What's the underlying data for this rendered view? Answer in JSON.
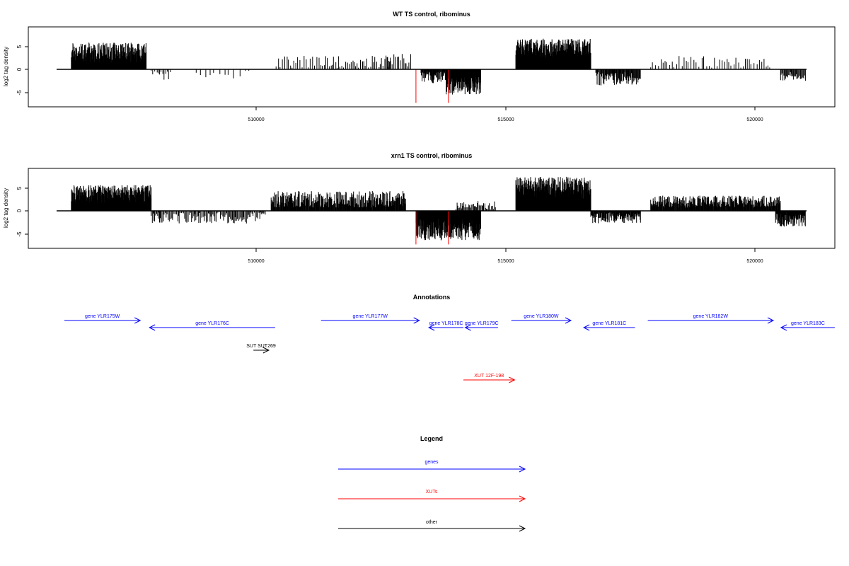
{
  "colors": {
    "axis": "#000000",
    "genes": "#0000ff",
    "xuts": "#ff0000",
    "other": "#000000",
    "highlight": "#ff0000"
  },
  "panels": [
    {
      "title": "WT TS control, ribominus",
      "ylabel": "log2 tag density",
      "yticks": [
        {
          "value": -5,
          "label": "-5"
        },
        {
          "value": 0,
          "label": "0"
        },
        {
          "value": 5,
          "label": "5"
        }
      ],
      "xticks": [
        {
          "value": 510000,
          "label": "510000"
        },
        {
          "value": 515000,
          "label": "515000"
        },
        {
          "value": 520000,
          "label": "520000"
        }
      ]
    },
    {
      "title": "xrn1 TS control, ribominus",
      "ylabel": "log2 tag density",
      "yticks": [
        {
          "value": -5,
          "label": "-5"
        },
        {
          "value": 0,
          "label": "0"
        },
        {
          "value": 5,
          "label": "5"
        }
      ],
      "xticks": [
        {
          "value": 510000,
          "label": "510000"
        },
        {
          "value": 515000,
          "label": "515000"
        },
        {
          "value": 520000,
          "label": "520000"
        }
      ]
    }
  ],
  "chart_data": [
    {
      "type": "bar",
      "title": "WT TS control, ribominus",
      "ylabel": "log2 tag density",
      "xlim": [
        505250,
        521550
      ],
      "ylim": [
        -7.5,
        9
      ],
      "baseline_range": [
        506250,
        521000
      ],
      "regions": [
        {
          "start": 506300,
          "end": 507800,
          "level": 3.6,
          "spread": 2.2,
          "density": 3
        },
        {
          "start": 507900,
          "end": 508300,
          "level": -1.0,
          "spread": 1.5,
          "density": 0.4
        },
        {
          "start": 508800,
          "end": 509900,
          "level": -1.0,
          "spread": 1.2,
          "density": 0.15
        },
        {
          "start": 510400,
          "end": 512700,
          "level": 1.5,
          "spread": 1.5,
          "density": 0.4
        },
        {
          "start": 512600,
          "end": 513100,
          "level": 2.0,
          "spread": 1.5,
          "density": 0.5
        },
        {
          "start": 513300,
          "end": 514200,
          "level": -1.5,
          "spread": 1.5,
          "density": 1.5
        },
        {
          "start": 513800,
          "end": 514500,
          "level": -3.5,
          "spread": 2.0,
          "density": 2.5
        },
        {
          "start": 515200,
          "end": 516700,
          "level": 4.5,
          "spread": 2.2,
          "density": 3
        },
        {
          "start": 516800,
          "end": 517700,
          "level": -2.0,
          "spread": 1.5,
          "density": 1.2
        },
        {
          "start": 517900,
          "end": 520300,
          "level": 1.5,
          "spread": 1.4,
          "density": 0.3
        },
        {
          "start": 520500,
          "end": 521000,
          "level": -1.5,
          "spread": 1.0,
          "density": 1.0
        }
      ],
      "highlights": [
        {
          "x": 513200,
          "y": -7.3
        },
        {
          "x": 513850,
          "y": -7.3
        }
      ]
    },
    {
      "type": "bar",
      "title": "xrn1 TS control, ribominus",
      "ylabel": "log2 tag density",
      "xlim": [
        505250,
        521550
      ],
      "ylim": [
        -7.5,
        9
      ],
      "baseline_range": [
        506250,
        521000
      ],
      "regions": [
        {
          "start": 506300,
          "end": 507900,
          "level": 3.6,
          "spread": 2.0,
          "density": 3
        },
        {
          "start": 507900,
          "end": 510200,
          "level": -1.5,
          "spread": 1.3,
          "density": 0.7
        },
        {
          "start": 510300,
          "end": 513000,
          "level": 2.5,
          "spread": 1.8,
          "density": 1.6
        },
        {
          "start": 513200,
          "end": 514500,
          "level": -4.0,
          "spread": 2.4,
          "density": 3
        },
        {
          "start": 514000,
          "end": 514800,
          "level": 1.2,
          "spread": 1.0,
          "density": 0.8
        },
        {
          "start": 515200,
          "end": 516700,
          "level": 5.0,
          "spread": 2.4,
          "density": 3
        },
        {
          "start": 516700,
          "end": 517700,
          "level": -1.5,
          "spread": 1.2,
          "density": 1.5
        },
        {
          "start": 517900,
          "end": 520500,
          "level": 2.0,
          "spread": 1.3,
          "density": 1.6
        },
        {
          "start": 520400,
          "end": 521000,
          "level": -2.0,
          "spread": 1.4,
          "density": 1.8
        }
      ],
      "highlights": [
        {
          "x": 513200,
          "y": -7.3
        },
        {
          "x": 513850,
          "y": -7.3
        }
      ]
    }
  ],
  "annotations": {
    "title": "Annotations",
    "items": [
      {
        "label": "gene YLR175W",
        "start": 505420,
        "end": 508380,
        "dir": "right",
        "kind": "gene",
        "row": 0
      },
      {
        "label": "gene YLR176C",
        "start": 508740,
        "end": 513650,
        "dir": "left",
        "kind": "gene",
        "row": 1
      },
      {
        "label": "gene YLR177W",
        "start": 515440,
        "end": 519280,
        "dir": "right",
        "kind": "gene",
        "row": 0
      },
      {
        "label": "gene YLR178C",
        "start": 519650,
        "end": 521000,
        "dir": "left",
        "kind": "gene",
        "row": 1
      },
      {
        "label": "gene YLR179C",
        "start": 521070,
        "end": 522350,
        "dir": "left",
        "kind": "gene",
        "row": 1
      },
      {
        "label": "gene YLR180W",
        "start": 522870,
        "end": 525200,
        "dir": "right",
        "kind": "gene",
        "row": 0
      },
      {
        "label": "gene YLR181C",
        "start": 525700,
        "end": 527700,
        "dir": "left",
        "kind": "gene",
        "row": 1
      },
      {
        "label": "gene YLR182W",
        "start": 528200,
        "end": 533100,
        "dir": "right",
        "kind": "gene",
        "row": 0
      },
      {
        "label": "gene YLR183C",
        "start": 533400,
        "end": 535500,
        "dir": "left",
        "kind": "gene",
        "row": 1
      },
      {
        "label": "SUT SUT269",
        "start": 512800,
        "end": 513400,
        "dir": "right",
        "kind": "other",
        "row": 2
      },
      {
        "label": "XUT 12F-198",
        "start": 521000,
        "end": 523000,
        "dir": "right",
        "kind": "xut",
        "row": 3
      }
    ]
  },
  "legend": {
    "title": "Legend",
    "items": [
      {
        "label": "genes",
        "kind": "gene"
      },
      {
        "label": "XUTs",
        "kind": "xut"
      },
      {
        "label": "other",
        "kind": "other"
      }
    ]
  }
}
